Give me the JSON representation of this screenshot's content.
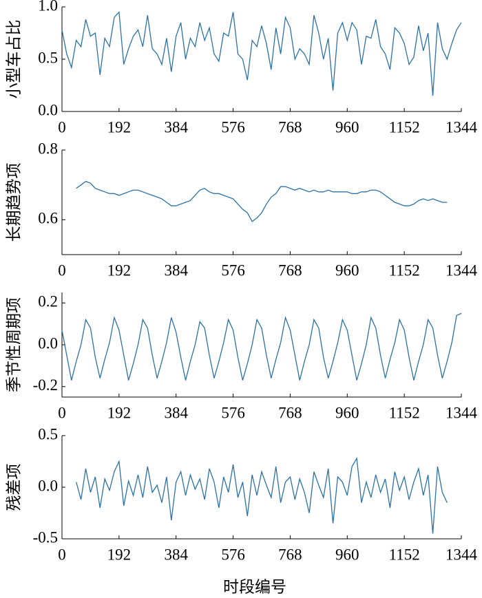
{
  "chart_data": [
    {
      "type": "line",
      "y_label": "小型车占比",
      "x": [
        0,
        16,
        32,
        48,
        64,
        80,
        96,
        112,
        128,
        144,
        160,
        176,
        192,
        208,
        224,
        240,
        256,
        272,
        288,
        304,
        320,
        336,
        352,
        368,
        384,
        400,
        416,
        432,
        448,
        464,
        480,
        496,
        512,
        528,
        544,
        560,
        576,
        592,
        608,
        624,
        640,
        656,
        672,
        688,
        704,
        720,
        736,
        752,
        768,
        784,
        800,
        816,
        832,
        848,
        864,
        880,
        896,
        912,
        928,
        944,
        960,
        976,
        992,
        1008,
        1024,
        1040,
        1056,
        1072,
        1088,
        1104,
        1120,
        1136,
        1152,
        1168,
        1184,
        1200,
        1216,
        1232,
        1248,
        1264,
        1280,
        1296,
        1312,
        1328,
        1344
      ],
      "series": [
        {
          "color": "#2a71a6",
          "values": [
            0.78,
            0.55,
            0.42,
            0.68,
            0.62,
            0.88,
            0.72,
            0.75,
            0.35,
            0.7,
            0.62,
            0.9,
            0.95,
            0.45,
            0.6,
            0.72,
            0.78,
            0.62,
            0.92,
            0.6,
            0.55,
            0.45,
            0.7,
            0.38,
            0.72,
            0.85,
            0.5,
            0.7,
            0.62,
            0.85,
            0.68,
            0.8,
            0.55,
            0.48,
            0.75,
            0.72,
            0.95,
            0.55,
            0.5,
            0.3,
            0.68,
            0.62,
            0.82,
            0.65,
            0.4,
            0.8,
            0.55,
            0.9,
            0.8,
            0.5,
            0.6,
            0.55,
            0.45,
            0.92,
            0.75,
            0.5,
            0.7,
            0.2,
            0.75,
            0.85,
            0.68,
            0.85,
            0.78,
            0.45,
            0.72,
            0.7,
            0.88,
            0.62,
            0.55,
            0.4,
            0.8,
            0.75,
            0.65,
            0.45,
            0.52,
            0.82,
            0.58,
            0.75,
            0.15,
            0.85,
            0.6,
            0.5,
            0.65,
            0.78,
            0.85
          ]
        }
      ],
      "xlim": [
        0,
        1344
      ],
      "xticks": [
        0,
        192,
        384,
        576,
        768,
        960,
        1152,
        1344
      ],
      "ylim": [
        0,
        1
      ],
      "yticks": [
        {
          "value": 0,
          "label": "0.0"
        },
        0.5,
        {
          "value": 1,
          "label": "1.0"
        }
      ]
    },
    {
      "type": "line",
      "y_label": "长期趋势项",
      "x": [
        0,
        16,
        32,
        48,
        64,
        80,
        96,
        112,
        128,
        144,
        160,
        176,
        192,
        208,
        224,
        240,
        256,
        272,
        288,
        304,
        320,
        336,
        352,
        368,
        384,
        400,
        416,
        432,
        448,
        464,
        480,
        496,
        512,
        528,
        544,
        560,
        576,
        592,
        608,
        624,
        640,
        656,
        672,
        688,
        704,
        720,
        736,
        752,
        768,
        784,
        800,
        816,
        832,
        848,
        864,
        880,
        896,
        912,
        928,
        944,
        960,
        976,
        992,
        1008,
        1024,
        1040,
        1056,
        1072,
        1088,
        1104,
        1120,
        1136,
        1152,
        1168,
        1184,
        1200,
        1216,
        1232,
        1248,
        1264,
        1280,
        1296,
        1312,
        1328,
        1344
      ],
      "series": [
        {
          "color": "#2a71a6",
          "values": [
            null,
            null,
            null,
            0.69,
            0.7,
            0.71,
            0.705,
            0.69,
            0.685,
            0.68,
            0.675,
            0.675,
            0.67,
            0.675,
            0.68,
            0.685,
            0.685,
            0.68,
            0.675,
            0.67,
            0.665,
            0.66,
            0.65,
            0.64,
            0.64,
            0.645,
            0.65,
            0.655,
            0.67,
            0.685,
            0.69,
            0.68,
            0.675,
            0.675,
            0.67,
            0.665,
            0.66,
            0.645,
            0.63,
            0.62,
            0.595,
            0.605,
            0.62,
            0.645,
            0.665,
            0.675,
            0.695,
            0.695,
            0.69,
            0.685,
            0.69,
            0.685,
            0.68,
            0.685,
            0.68,
            0.68,
            0.685,
            0.68,
            0.68,
            0.68,
            0.68,
            0.675,
            0.675,
            0.68,
            0.68,
            0.685,
            0.685,
            0.68,
            0.67,
            0.66,
            0.65,
            0.645,
            0.64,
            0.64,
            0.645,
            0.655,
            0.66,
            0.655,
            0.66,
            0.655,
            0.65,
            0.65,
            null,
            null,
            null
          ]
        }
      ],
      "xlim": [
        0,
        1344
      ],
      "xticks": [
        0,
        192,
        384,
        576,
        768,
        960,
        1152,
        1344
      ],
      "ylim": [
        0.5,
        0.8
      ],
      "yticks": [
        0.6,
        0.8
      ]
    },
    {
      "type": "line",
      "y_label": "季节性周期项",
      "x": [
        0,
        16,
        32,
        48,
        64,
        80,
        96,
        112,
        128,
        144,
        160,
        176,
        192,
        208,
        224,
        240,
        256,
        272,
        288,
        304,
        320,
        336,
        352,
        368,
        384,
        400,
        416,
        432,
        448,
        464,
        480,
        496,
        512,
        528,
        544,
        560,
        576,
        592,
        608,
        624,
        640,
        656,
        672,
        688,
        704,
        720,
        736,
        752,
        768,
        784,
        800,
        816,
        832,
        848,
        864,
        880,
        896,
        912,
        928,
        944,
        960,
        976,
        992,
        1008,
        1024,
        1040,
        1056,
        1072,
        1088,
        1104,
        1120,
        1136,
        1152,
        1168,
        1184,
        1200,
        1216,
        1232,
        1248,
        1264,
        1280,
        1296,
        1312,
        1328,
        1344
      ],
      "series": [
        {
          "color": "#2a71a6",
          "values": [
            0.07,
            -0.05,
            -0.17,
            -0.08,
            0.0,
            0.12,
            0.08,
            -0.06,
            -0.16,
            -0.07,
            0.01,
            0.13,
            0.07,
            -0.05,
            -0.17,
            -0.09,
            0.0,
            0.12,
            0.08,
            -0.05,
            -0.16,
            -0.08,
            0.01,
            0.13,
            0.06,
            -0.06,
            -0.17,
            -0.08,
            0.0,
            0.11,
            0.08,
            -0.05,
            -0.16,
            -0.08,
            0.01,
            0.12,
            0.07,
            -0.06,
            -0.17,
            -0.09,
            0.0,
            0.12,
            0.08,
            -0.05,
            -0.16,
            -0.07,
            0.01,
            0.13,
            0.07,
            -0.05,
            -0.17,
            -0.08,
            0.0,
            0.12,
            0.08,
            -0.06,
            -0.16,
            -0.08,
            0.01,
            0.12,
            0.07,
            -0.05,
            -0.17,
            -0.09,
            0.0,
            0.13,
            0.08,
            -0.05,
            -0.16,
            -0.07,
            0.01,
            0.12,
            0.07,
            -0.06,
            -0.17,
            -0.08,
            0.0,
            0.12,
            0.08,
            -0.05,
            -0.16,
            -0.08,
            0.01,
            0.14,
            0.15
          ]
        }
      ],
      "xlim": [
        0,
        1344
      ],
      "xticks": [
        0,
        192,
        384,
        576,
        768,
        960,
        1152,
        1344
      ],
      "ylim": [
        -0.25,
        0.25
      ],
      "yticks": [
        -0.2,
        {
          "value": 0,
          "label": "0.0"
        },
        0.2
      ]
    },
    {
      "type": "line",
      "y_label": "残差项",
      "x_label": "时段编号",
      "x": [
        0,
        16,
        32,
        48,
        64,
        80,
        96,
        112,
        128,
        144,
        160,
        176,
        192,
        208,
        224,
        240,
        256,
        272,
        288,
        304,
        320,
        336,
        352,
        368,
        384,
        400,
        416,
        432,
        448,
        464,
        480,
        496,
        512,
        528,
        544,
        560,
        576,
        592,
        608,
        624,
        640,
        656,
        672,
        688,
        704,
        720,
        736,
        752,
        768,
        784,
        800,
        816,
        832,
        848,
        864,
        880,
        896,
        912,
        928,
        944,
        960,
        976,
        992,
        1008,
        1024,
        1040,
        1056,
        1072,
        1088,
        1104,
        1120,
        1136,
        1152,
        1168,
        1184,
        1200,
        1216,
        1232,
        1248,
        1264,
        1280,
        1296,
        1312,
        1328,
        1344
      ],
      "series": [
        {
          "color": "#2a71a6",
          "values": [
            null,
            null,
            null,
            0.05,
            -0.12,
            0.18,
            -0.05,
            0.1,
            -0.2,
            0.08,
            -0.03,
            0.15,
            0.25,
            -0.18,
            0.06,
            -0.08,
            0.12,
            -0.1,
            0.2,
            -0.05,
            0.02,
            -0.15,
            0.1,
            -0.32,
            0.05,
            0.15,
            -0.08,
            0.12,
            -0.02,
            0.08,
            -0.12,
            0.18,
            0.05,
            -0.2,
            0.1,
            -0.05,
            0.22,
            -0.1,
            0.05,
            -0.28,
            0.12,
            -0.08,
            0.15,
            0.02,
            -0.1,
            0.2,
            -0.15,
            0.05,
            0.1,
            -0.12,
            0.08,
            -0.05,
            -0.25,
            0.15,
            0.02,
            -0.1,
            0.18,
            -0.35,
            0.1,
            0.05,
            -0.08,
            0.2,
            0.28,
            -0.15,
            0.05,
            -0.1,
            0.12,
            -0.05,
            0.08,
            -0.2,
            0.15,
            -0.03,
            0.1,
            -0.12,
            0.05,
            0.18,
            -0.08,
            0.12,
            -0.45,
            0.2,
            -0.05,
            -0.15,
            null,
            null,
            null
          ]
        }
      ],
      "xlim": [
        0,
        1344
      ],
      "xticks": [
        0,
        192,
        384,
        576,
        768,
        960,
        1152,
        1344
      ],
      "ylim": [
        -0.5,
        0.5
      ],
      "yticks": [
        -0.5,
        {
          "value": 0,
          "label": "0.0"
        },
        0.5
      ]
    }
  ]
}
